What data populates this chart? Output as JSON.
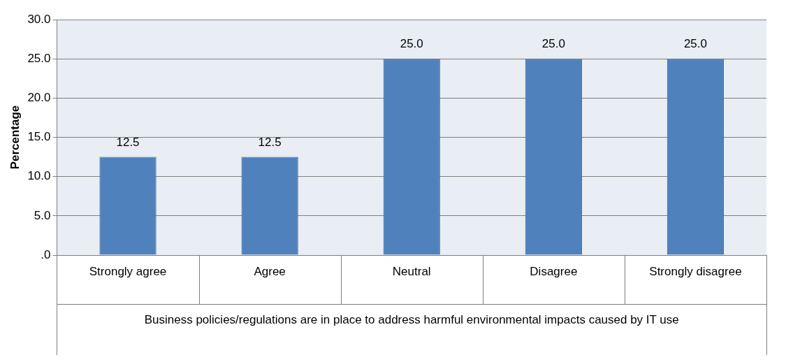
{
  "chart_data": {
    "type": "bar",
    "xlabel": "Business policies/regulations are in place to address harmful environmental impacts caused by IT use",
    "ylabel": "Percentage",
    "categories": [
      "Strongly agree",
      "Agree",
      "Neutral",
      "Disagree",
      "Strongly disagree"
    ],
    "values": [
      12.5,
      12.5,
      25,
      25,
      25
    ],
    "color": "#4f81bd",
    "value_labels": [
      "12.5",
      "12.5",
      "25.0",
      "25.0",
      "25.0"
    ],
    "ylim": [
      0,
      30
    ],
    "yticks": [
      {
        "value": 0,
        "label": ".0"
      },
      {
        "value": 5,
        "label": "5.0"
      },
      {
        "value": 10,
        "label": "10.0"
      },
      {
        "value": 15,
        "label": "15.0"
      },
      {
        "value": 20,
        "label": "20.0"
      },
      {
        "value": 25,
        "label": "25.0"
      },
      {
        "value": 30,
        "label": "30.0"
      }
    ],
    "grid": "y",
    "legend": false
  }
}
